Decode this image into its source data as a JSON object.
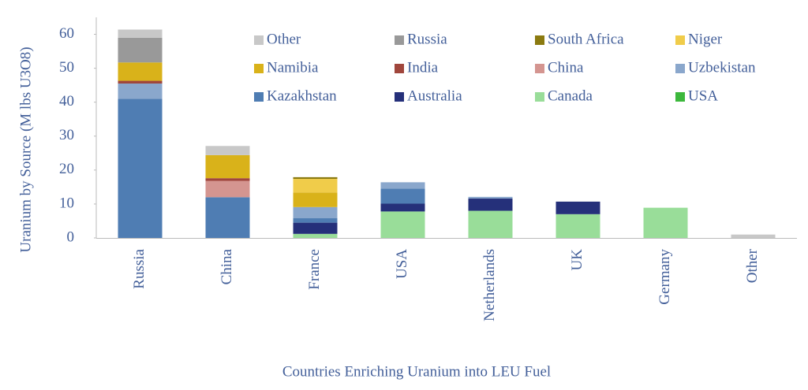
{
  "chart_data": {
    "type": "stacked_bar",
    "y_label": "Uranium by Source (M lbs U3O8)",
    "x_label": "Countries Enriching Uranium into LEU Fuel",
    "categories": [
      "Russia",
      "China",
      "France",
      "USA",
      "Netherlands",
      "UK",
      "Germany",
      "Other"
    ],
    "ylim": [
      0,
      65
    ],
    "yticks": [
      0,
      10,
      20,
      30,
      40,
      50,
      60
    ],
    "series": [
      {
        "name": "USA",
        "color": "#3cb83c",
        "values": [
          0,
          0,
          0,
          0,
          0,
          0,
          0,
          0
        ]
      },
      {
        "name": "Canada",
        "color": "#99dd99",
        "values": [
          0,
          0,
          1.2,
          7.8,
          8,
          7,
          8.9,
          0
        ]
      },
      {
        "name": "Australia",
        "color": "#25307a",
        "values": [
          0,
          0,
          3.3,
          2.3,
          3.6,
          3.7,
          0,
          0
        ]
      },
      {
        "name": "Kazakhstan",
        "color": "#4f7db3",
        "values": [
          41,
          12,
          1.3,
          4.4,
          0,
          0,
          0,
          0
        ]
      },
      {
        "name": "Uzbekistan",
        "color": "#8aa7cc",
        "values": [
          4.5,
          0,
          3.3,
          1.9,
          0.5,
          0,
          0,
          0
        ]
      },
      {
        "name": "China",
        "color": "#d49590",
        "values": [
          0,
          4.8,
          0,
          0,
          0,
          0,
          0,
          0
        ]
      },
      {
        "name": "India",
        "color": "#a0463c",
        "values": [
          0.8,
          0.8,
          0,
          0,
          0,
          0,
          0,
          0
        ]
      },
      {
        "name": "Namibia",
        "color": "#d9b21a",
        "values": [
          5.4,
          6.8,
          4.3,
          0,
          0,
          0,
          0,
          0
        ]
      },
      {
        "name": "Niger",
        "color": "#f0cc4a",
        "values": [
          0,
          0,
          4,
          0,
          0,
          0,
          0,
          0
        ]
      },
      {
        "name": "South Africa",
        "color": "#8b7a10",
        "values": [
          0,
          0,
          0.5,
          0,
          0,
          0,
          0,
          0
        ]
      },
      {
        "name": "Russia",
        "color": "#999999",
        "values": [
          7.3,
          0,
          0,
          0,
          0,
          0,
          0,
          0
        ]
      },
      {
        "name": "Other",
        "color": "#c8c8c8",
        "values": [
          2.4,
          2.7,
          0,
          0,
          0,
          0,
          0,
          1
        ]
      }
    ]
  }
}
